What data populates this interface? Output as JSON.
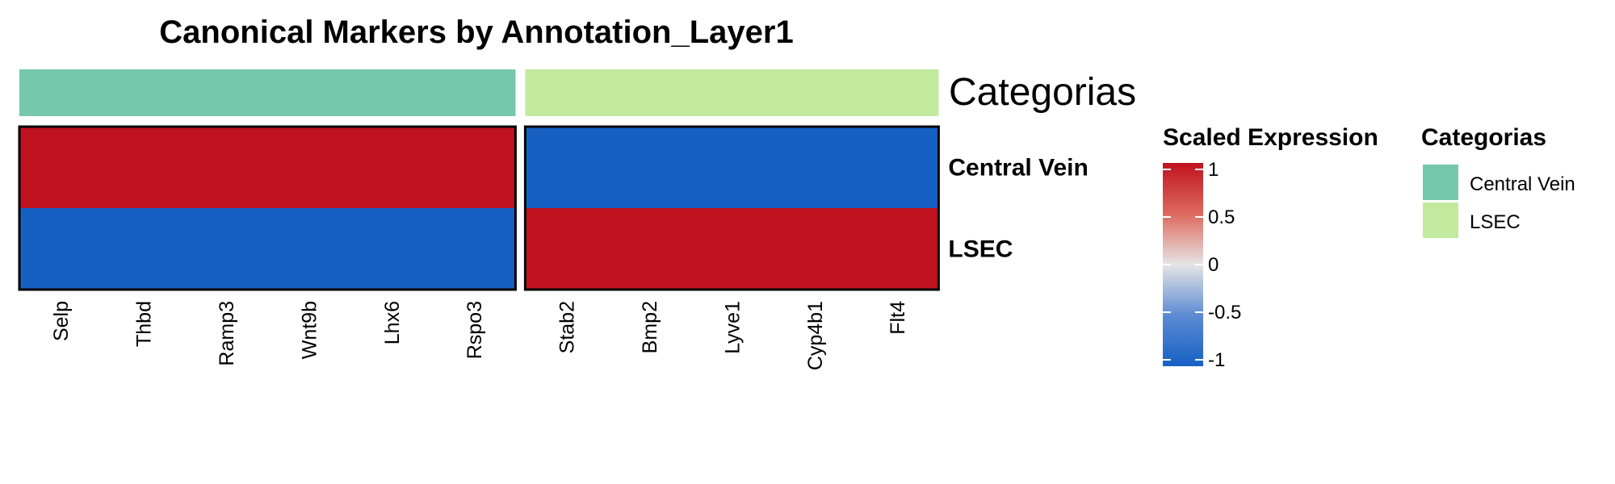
{
  "chart_data": {
    "type": "heatmap",
    "title": "Canonical Markers by Annotation_Layer1",
    "rows": [
      "Central Vein",
      "LSEC"
    ],
    "column_groups": [
      {
        "category": "Central Vein",
        "columns": [
          "Selp",
          "Thbd",
          "Ramp3",
          "Wnt9b",
          "Lhx6",
          "Rspo3"
        ]
      },
      {
        "category": "LSEC",
        "columns": [
          "Stab2",
          "Bmp2",
          "Lyve1",
          "Cyp4b1",
          "Flt4"
        ]
      }
    ],
    "values": [
      [
        1,
        1,
        1,
        1,
        1,
        1,
        -1,
        -1,
        -1,
        -1,
        -1
      ],
      [
        -1,
        -1,
        -1,
        -1,
        -1,
        -1,
        1,
        1,
        1,
        1,
        1
      ]
    ],
    "annotation": {
      "name": "Categorias",
      "levels": [
        {
          "label": "Central Vein",
          "color": "#76C8AC"
        },
        {
          "label": "LSEC",
          "color": "#C2EA9E"
        }
      ]
    },
    "color_scale": {
      "title": "Scaled Expression",
      "range": [
        -1,
        1
      ],
      "ticks": [
        1,
        0.5,
        0,
        -0.5,
        -1
      ],
      "tick_labels": [
        "1",
        "0.5",
        "0",
        "-0.5",
        "-1"
      ],
      "stops": [
        {
          "value": -1,
          "color": "#1660C4"
        },
        {
          "value": -0.5,
          "color": "#5C8BD3"
        },
        {
          "value": 0,
          "color": "#E5E5E5"
        },
        {
          "value": 0.5,
          "color": "#DD6A5E"
        },
        {
          "value": 1,
          "color": "#C0121F"
        }
      ]
    },
    "grid": false,
    "legend_placement": "right"
  }
}
